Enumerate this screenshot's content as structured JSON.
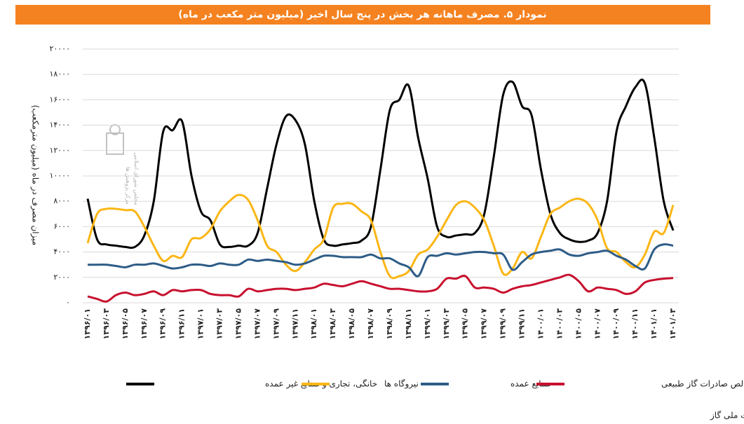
{
  "chart_data": {
    "type": "line",
    "title": "نمودار ۵. مصرف ماهانه هر بخش در پنج سال اخیر (میلیون متر مکعب در ماه)",
    "y_label": "میزان مصرف در ماه (میلیون مترمکعب)",
    "source": "مأخذ: شرکت ملی گاز",
    "logo_text": [
      "مجلس شورای اسلامی",
      "مرکز پژوهش ها"
    ],
    "categories": [
      "۱۳۹۶/۰۱",
      null,
      "۱۳۹۶/۰۳",
      null,
      "۱۳۹۶/۰۵",
      null,
      "۱۳۹۶/۰۷",
      null,
      "۱۳۹۶/۰۹",
      null,
      "۱۳۹۶/۱۱",
      null,
      "۱۳۹۷/۰۱",
      null,
      "۱۳۹۷/۰۳",
      null,
      "۱۳۹۷/۰۵",
      null,
      "۱۳۹۷/۰۷",
      null,
      "۱۳۹۷/۰۹",
      null,
      "۱۳۹۷/۱۱",
      null,
      "۱۳۹۸/۰۱",
      null,
      "۱۳۹۸/۰۳",
      null,
      "۱۳۹۸/۰۵",
      null,
      "۱۳۹۸/۰۷",
      null,
      "۱۳۹۸/۰۹",
      null,
      "۱۳۹۸/۱۱",
      null,
      "۱۳۹۹/۰۱",
      null,
      "۱۳۹۹/۰۳",
      null,
      "۱۳۹۹/۰۵",
      null,
      "۱۳۹۹/۰۷",
      null,
      "۱۳۹۹/۰۹",
      null,
      "۱۳۹۹/۱۱",
      null,
      "۱۴۰۰/۰۱",
      null,
      "۱۴۰۰/۰۳",
      null,
      "۱۴۰۰/۰۵",
      null,
      "۱۴۰۰/۰۷",
      null,
      "۱۴۰۰/۰۹",
      null,
      "۱۴۰۰/۱۱",
      null,
      "۱۴۰۱/۰۱",
      null,
      "۱۴۰۱/۰۳"
    ],
    "series": [
      {
        "name": "خانگی، تجاری و صنایع غیر عمده",
        "color": "#000000",
        "values": [
          8200,
          5000,
          4600,
          4500,
          4400,
          4400,
          5300,
          8000,
          13500,
          13600,
          14300,
          10000,
          7200,
          6500,
          4600,
          4400,
          4500,
          4500,
          5500,
          9000,
          12500,
          14700,
          14400,
          12500,
          8000,
          5000,
          4500,
          4600,
          4700,
          4900,
          6000,
          10500,
          15200,
          16000,
          17100,
          13000,
          9800,
          6000,
          5200,
          5300,
          5400,
          5500,
          7000,
          11500,
          16400,
          17400,
          15500,
          14800,
          10500,
          7000,
          5500,
          5000,
          4800,
          4900,
          5500,
          8000,
          13500,
          15500,
          17000,
          17300,
          13000,
          8000,
          5700
        ]
      },
      {
        "name": "نیروگاه ها",
        "color": "#fbb614",
        "values": [
          4700,
          7000,
          7400,
          7400,
          7300,
          7200,
          6000,
          4500,
          3300,
          3700,
          3600,
          5000,
          5100,
          5800,
          7200,
          8000,
          8500,
          8100,
          6500,
          4500,
          4000,
          3000,
          2500,
          3200,
          4200,
          5000,
          7500,
          7800,
          7800,
          7200,
          6500,
          4000,
          2100,
          2100,
          2500,
          3800,
          4200,
          5200,
          6500,
          7700,
          8000,
          7500,
          6500,
          4500,
          2300,
          2700,
          4000,
          3500,
          5200,
          7000,
          7500,
          8000,
          8200,
          7800,
          6500,
          4300,
          4000,
          3200,
          2800,
          3800,
          5600,
          5500,
          7700
        ]
      },
      {
        "name": "صنایع عمده",
        "color": "#2d5c87",
        "values": [
          3000,
          3000,
          3000,
          2900,
          2800,
          3000,
          3000,
          3100,
          2900,
          2700,
          2800,
          3000,
          3000,
          2900,
          3100,
          3000,
          3000,
          3400,
          3300,
          3400,
          3300,
          3200,
          3000,
          3100,
          3400,
          3700,
          3700,
          3600,
          3600,
          3600,
          3800,
          3500,
          3500,
          3100,
          2800,
          2100,
          3600,
          3700,
          3900,
          3800,
          3900,
          4000,
          4000,
          3900,
          3800,
          2600,
          3200,
          3800,
          4000,
          4100,
          4200,
          3800,
          3700,
          3900,
          4000,
          4100,
          3700,
          3400,
          2900,
          2700,
          4200,
          4600,
          4500
        ]
      },
      {
        "name": "خالص صادرات گاز طبیعی",
        "color": "#c8102e",
        "values": [
          500,
          300,
          100,
          600,
          800,
          600,
          700,
          900,
          600,
          1000,
          900,
          1000,
          1000,
          700,
          600,
          600,
          500,
          1100,
          900,
          1000,
          1100,
          1100,
          1000,
          1100,
          1200,
          1500,
          1400,
          1300,
          1500,
          1700,
          1500,
          1300,
          1100,
          1100,
          1000,
          900,
          900,
          1100,
          1900,
          1900,
          2100,
          1200,
          1200,
          1100,
          800,
          1100,
          1300,
          1400,
          1600,
          1800,
          2000,
          2200,
          1700,
          900,
          1200,
          1100,
          1000,
          700,
          900,
          1600,
          1800,
          1900,
          1950
        ]
      }
    ],
    "ylim": [
      0,
      20000
    ],
    "yticks": [
      {
        "value": 0,
        "label": "۰"
      },
      {
        "value": 2000,
        "label": "۲۰۰۰"
      },
      {
        "value": 4000,
        "label": "۴۰۰۰"
      },
      {
        "value": 6000,
        "label": "۶۰۰۰"
      },
      {
        "value": 8000,
        "label": "۸۰۰۰"
      },
      {
        "value": 10000,
        "label": "۱۰۰۰۰"
      },
      {
        "value": 12000,
        "label": "۱۲۰۰۰"
      },
      {
        "value": 14000,
        "label": "۱۴۰۰۰"
      },
      {
        "value": 16000,
        "label": "۱۶۰۰۰"
      },
      {
        "value": 18000,
        "label": "۱۸۰۰۰"
      },
      {
        "value": 20000,
        "label": "۲۰۰۰۰"
      }
    ],
    "grid": true
  }
}
